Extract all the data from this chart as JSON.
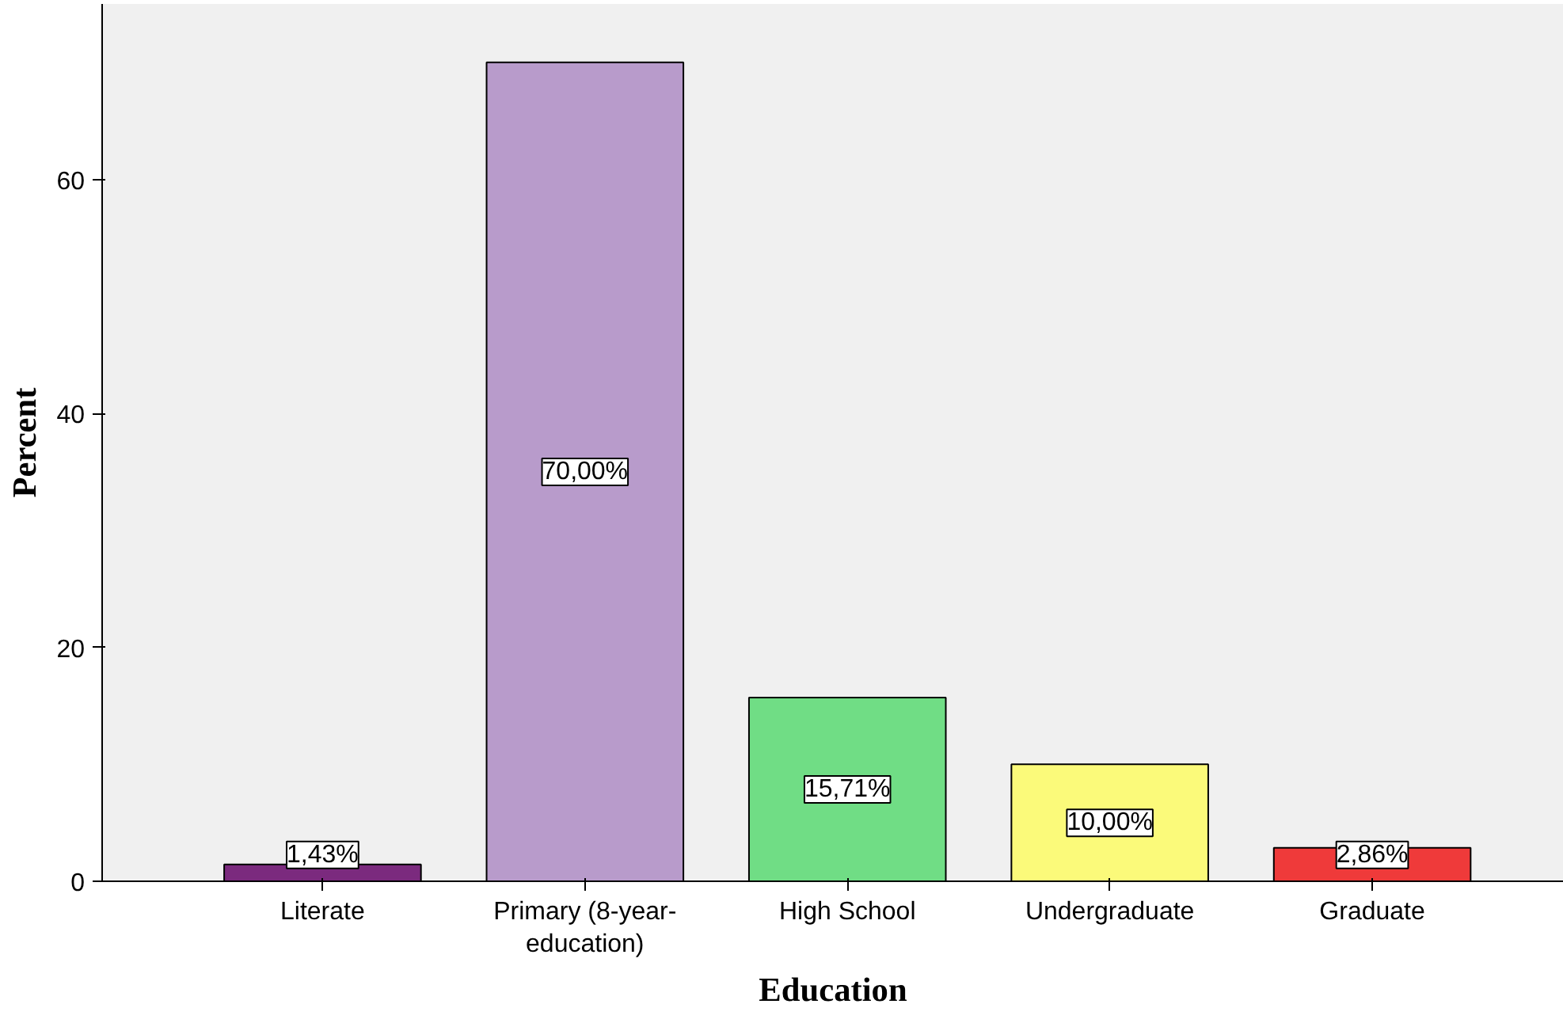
{
  "chart_data": {
    "type": "bar",
    "xlabel": "Education",
    "ylabel": "Percent",
    "categories": [
      "Literate",
      "Primary (8-year-education)",
      "High School",
      "Undergraduate",
      "Graduate"
    ],
    "values": [
      1.43,
      70.0,
      15.71,
      10.0,
      2.86
    ],
    "colors": [
      "#7b2a7e",
      "#b89bcb",
      "#70dd85",
      "#fbfa7a",
      "#ef3a3a"
    ],
    "value_labels": [
      "1,43%",
      "70,00%",
      "15,71%",
      "10,00%",
      "2,86%"
    ],
    "ylim": [
      0,
      75
    ],
    "yticks": [
      0,
      20,
      40,
      60
    ],
    "grid": false
  }
}
